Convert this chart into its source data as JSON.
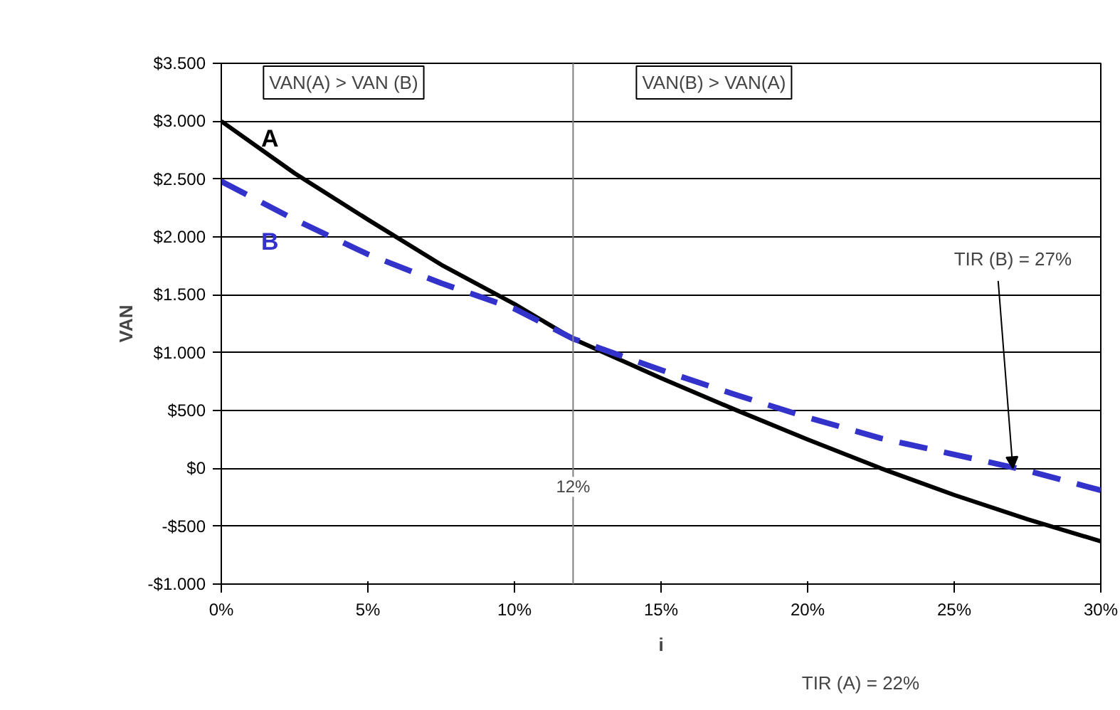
{
  "chart_data": {
    "type": "line",
    "xlabel": "i",
    "ylabel": "VAN",
    "x": [
      0,
      2.5,
      5,
      7.5,
      10,
      12,
      15,
      17.5,
      20,
      22.5,
      25,
      27.5,
      30
    ],
    "series": [
      {
        "name": "A",
        "color": "#000000",
        "line_style": "solid",
        "values": [
          3000,
          2550,
          2150,
          1760,
          1420,
          1120,
          780,
          510,
          250,
          0,
          -230,
          -440,
          -630
        ]
      },
      {
        "name": "B",
        "color": "#3333cc",
        "line_style": "dashed",
        "values": [
          2480,
          2150,
          1850,
          1600,
          1380,
          1120,
          850,
          640,
          440,
          260,
          120,
          -20,
          -190
        ]
      }
    ],
    "xlim": [
      0,
      30
    ],
    "ylim": [
      -1000,
      3500
    ],
    "xticks": [
      {
        "value": 0,
        "label": "0%"
      },
      {
        "value": 5,
        "label": "5%"
      },
      {
        "value": 10,
        "label": "10%"
      },
      {
        "value": 15,
        "label": "15%"
      },
      {
        "value": 20,
        "label": "20%"
      },
      {
        "value": 25,
        "label": "25%"
      },
      {
        "value": 30,
        "label": "30%"
      }
    ],
    "yticks": [
      {
        "value": -1000,
        "label": "-$1.000"
      },
      {
        "value": -500,
        "label": "-$500"
      },
      {
        "value": 0,
        "label": "$0"
      },
      {
        "value": 500,
        "label": "$500"
      },
      {
        "value": 1000,
        "label": "$1.000"
      },
      {
        "value": 1500,
        "label": "$1.500"
      },
      {
        "value": 2000,
        "label": "$2.000"
      },
      {
        "value": 2500,
        "label": "$2.500"
      },
      {
        "value": 3000,
        "label": "$3.000"
      },
      {
        "value": 3500,
        "label": "$3.500"
      }
    ],
    "ref_lines": [
      {
        "axis": "x",
        "value": 12,
        "label": "12%",
        "color": "#808080"
      }
    ],
    "annotations": [
      "VAN(A) > VAN (B)",
      "VAN(B) > VAN(A)",
      {
        "text": "TIR (B) = 27%",
        "x": 27,
        "y": 0
      },
      "TIR (A) = 22%"
    ],
    "grid": "y"
  }
}
